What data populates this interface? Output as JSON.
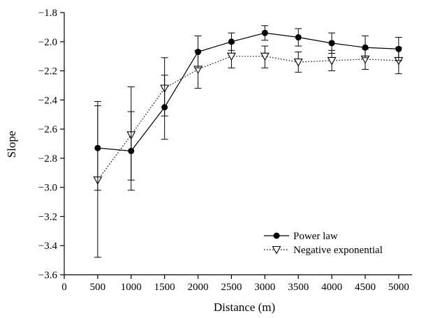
{
  "chart_data": {
    "type": "line",
    "title": "",
    "xlabel": "Distance (m)",
    "ylabel": "Slope",
    "xlim": [
      0,
      5200
    ],
    "ylim": [
      -3.6,
      -1.8
    ],
    "x_ticks": [
      0,
      500,
      1000,
      1500,
      2000,
      2500,
      3000,
      3500,
      4000,
      4500,
      5000
    ],
    "x_tick_labels": [
      "0",
      "500",
      "1000",
      "1500",
      "2000",
      "2500",
      "3000",
      "3500",
      "4000",
      "4500",
      "5000"
    ],
    "y_ticks": [
      -3.6,
      -3.4,
      -3.2,
      -3.0,
      -2.8,
      -2.6,
      -2.4,
      -2.2,
      -2.0,
      -1.8
    ],
    "y_tick_labels": [
      "−3.6",
      "−3.4",
      "−3.2",
      "−3.0",
      "−2.8",
      "−2.6",
      "−2.4",
      "−2.2",
      "−2.0",
      "−1.8"
    ],
    "grid": false,
    "legend_position": "lower-right",
    "x": [
      500,
      1000,
      1500,
      2000,
      2500,
      3000,
      3500,
      4000,
      4500,
      5000
    ],
    "series": [
      {
        "name": "Power law",
        "line_style": "solid",
        "marker": "filled-circle",
        "color": "#000000",
        "values": [
          -2.73,
          -2.75,
          -2.45,
          -2.07,
          -2.0,
          -1.94,
          -1.97,
          -2.01,
          -2.04,
          -2.05
        ],
        "err_low": [
          -3.02,
          -3.02,
          -2.67,
          -2.18,
          -2.06,
          -1.99,
          -2.03,
          -2.08,
          -2.11,
          -2.13
        ],
        "err_high": [
          -2.44,
          -2.48,
          -2.23,
          -1.96,
          -1.94,
          -1.89,
          -1.91,
          -1.94,
          -1.96,
          -1.97
        ]
      },
      {
        "name": "Negative exponential",
        "line_style": "dotted",
        "marker": "open-triangle-down",
        "color": "#000000",
        "values": [
          -2.95,
          -2.64,
          -2.32,
          -2.19,
          -2.1,
          -2.1,
          -2.14,
          -2.13,
          -2.12,
          -2.13
        ],
        "err_low": [
          -3.48,
          -2.95,
          -2.51,
          -2.32,
          -2.18,
          -2.18,
          -2.21,
          -2.2,
          -2.19,
          -2.22
        ],
        "err_high": [
          -2.41,
          -2.31,
          -2.11,
          -2.06,
          -2.01,
          -2.03,
          -2.07,
          -2.06,
          -2.05,
          -2.04
        ]
      }
    ]
  }
}
